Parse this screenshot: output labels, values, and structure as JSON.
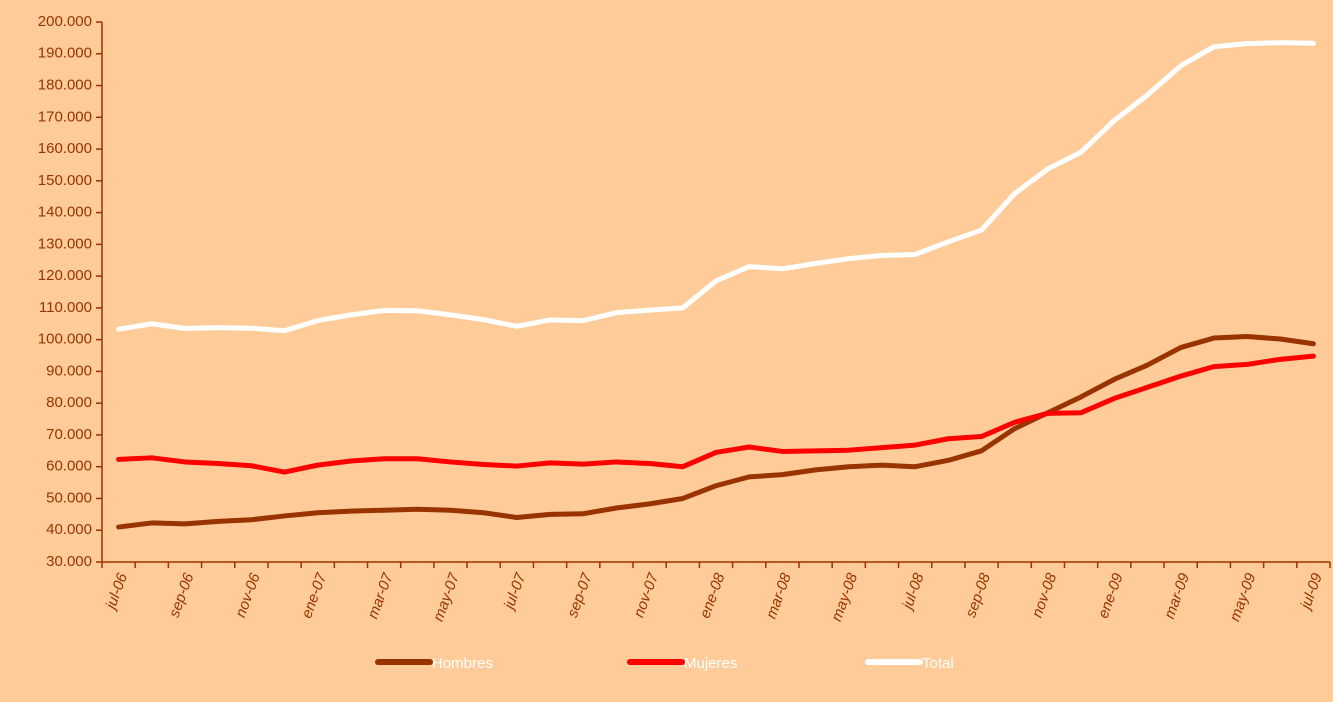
{
  "chart_data": {
    "type": "line",
    "categories": [
      "jul-06",
      null,
      "sep-06",
      null,
      "nov-06",
      null,
      "ene-07",
      null,
      "mar-07",
      null,
      "may-07",
      null,
      "jul-07",
      null,
      "sep-07",
      null,
      "nov-07",
      null,
      "ene-08",
      null,
      "mar-08",
      null,
      "may-08",
      null,
      "jul-08",
      null,
      "sep-08",
      null,
      "nov-08",
      null,
      "ene-09",
      null,
      "mar-09",
      null,
      "may-09",
      null,
      "jul-09"
    ],
    "series": [
      {
        "name": "Hombres",
        "color": "#993300",
        "values": [
          41000,
          42300,
          42000,
          42800,
          43300,
          44500,
          45500,
          46000,
          46300,
          46600,
          46300,
          45500,
          44000,
          45000,
          45200,
          47000,
          48300,
          50000,
          54000,
          56800,
          57500,
          59000,
          60000,
          60500,
          60000,
          62000,
          65000,
          72000,
          77000,
          82000,
          87500,
          92000,
          97500,
          100500,
          101000,
          100200,
          98700
        ]
      },
      {
        "name": "Mujeres",
        "color": "#ff0000",
        "values": [
          62300,
          62800,
          61500,
          61000,
          60300,
          58300,
          60500,
          61800,
          62500,
          62500,
          61500,
          60700,
          60200,
          61200,
          60800,
          61500,
          61000,
          60000,
          64500,
          66200,
          64800,
          65000,
          65200,
          66000,
          66800,
          68800,
          69500,
          74000,
          76800,
          77000,
          81500,
          85000,
          88500,
          91500,
          92200,
          93800,
          94800
        ]
      },
      {
        "name": "Total",
        "color": "#ffffff",
        "values": [
          103300,
          105000,
          103500,
          103800,
          103600,
          102800,
          106000,
          107800,
          109200,
          109100,
          107800,
          106300,
          104200,
          106200,
          106000,
          108500,
          109300,
          110000,
          118500,
          123000,
          122300,
          124000,
          125500,
          126500,
          126800,
          130800,
          134500,
          146000,
          153800,
          159000,
          169000,
          177000,
          186200,
          192200,
          193200,
          193500,
          193300
        ]
      }
    ],
    "ylim": [
      30000,
      200000
    ],
    "yticks": [
      {
        "value": 30000,
        "label": "30.000"
      },
      {
        "value": 40000,
        "label": "40.000"
      },
      {
        "value": 50000,
        "label": "50.000"
      },
      {
        "value": 60000,
        "label": "60.000"
      },
      {
        "value": 70000,
        "label": "70.000"
      },
      {
        "value": 80000,
        "label": "80.000"
      },
      {
        "value": 90000,
        "label": "90.000"
      },
      {
        "value": 100000,
        "label": "100.000"
      },
      {
        "value": 110000,
        "label": "110.000"
      },
      {
        "value": 120000,
        "label": "120.000"
      },
      {
        "value": 130000,
        "label": "130.000"
      },
      {
        "value": 140000,
        "label": "140.000"
      },
      {
        "value": 150000,
        "label": "150.000"
      },
      {
        "value": 160000,
        "label": "160.000"
      },
      {
        "value": 170000,
        "label": "170.000"
      },
      {
        "value": 180000,
        "label": "180.000"
      },
      {
        "value": 190000,
        "label": "190.000"
      },
      {
        "value": 200000,
        "label": "200.000"
      }
    ],
    "grid": false,
    "legend": "bottom"
  }
}
